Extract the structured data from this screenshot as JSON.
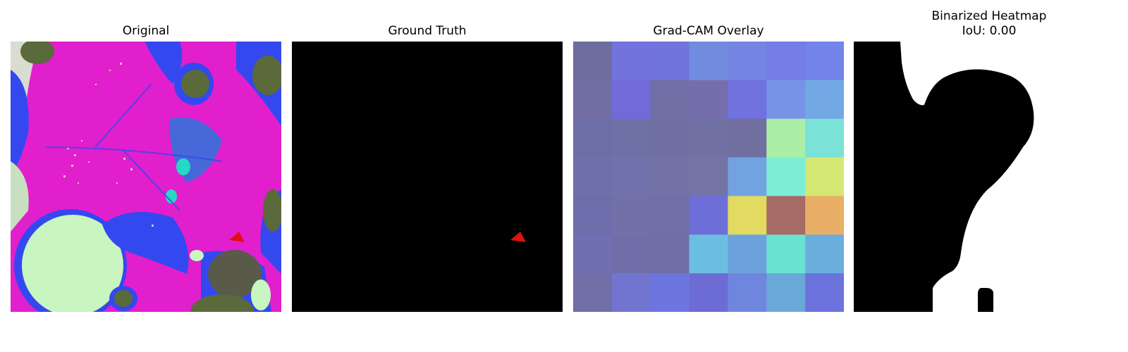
{
  "panels": [
    {
      "title": "Original"
    },
    {
      "title": "Ground Truth"
    },
    {
      "title": "Grad-CAM Overlay"
    },
    {
      "title": "Binarized Heatmap",
      "subtitle": "IoU: 0.00"
    }
  ],
  "gradcam": {
    "grid_size": 7,
    "cells": [
      [
        "#6f6d9f",
        "#7273dd",
        "#7074db",
        "#718bdf",
        "#7484e2",
        "#757de7",
        "#7383ea"
      ],
      [
        "#706ea3",
        "#736ad9",
        "#706fa6",
        "#746ead",
        "#7171df",
        "#7693e7",
        "#72a9e4"
      ],
      [
        "#6e6ea6",
        "#6f70a5",
        "#6f6fa4",
        "#7271a4",
        "#706f9f",
        "#abeea6",
        "#7ae2d6"
      ],
      [
        "#6f6fa9",
        "#7171ac",
        "#7272a7",
        "#7373a5",
        "#72a2e0",
        "#7deed6",
        "#d5e873"
      ],
      [
        "#6e6dab",
        "#7170a8",
        "#716fa8",
        "#6e6ed9",
        "#e3da62",
        "#a76b66",
        "#e9af66"
      ],
      [
        "#706fb4",
        "#6f6ea8",
        "#6f6ea6",
        "#6cbee0",
        "#6ca3dd",
        "#6ae2d3",
        "#6aaede"
      ],
      [
        "#706fa7",
        "#7175d0",
        "#6d76e0",
        "#6d6cd5",
        "#6f86df",
        "#6aa8d9",
        "#6c73dc"
      ]
    ]
  },
  "colors": {
    "original_pink": "#e21fcc",
    "original_blue": "#3448f0",
    "original_green": "#c8f5c0",
    "original_olive": "#5a6a3a",
    "ground_truth_bg": "#000000",
    "ground_truth_marker": "#e01010",
    "binary_fg": "#ffffff",
    "binary_bg": "#000000"
  }
}
